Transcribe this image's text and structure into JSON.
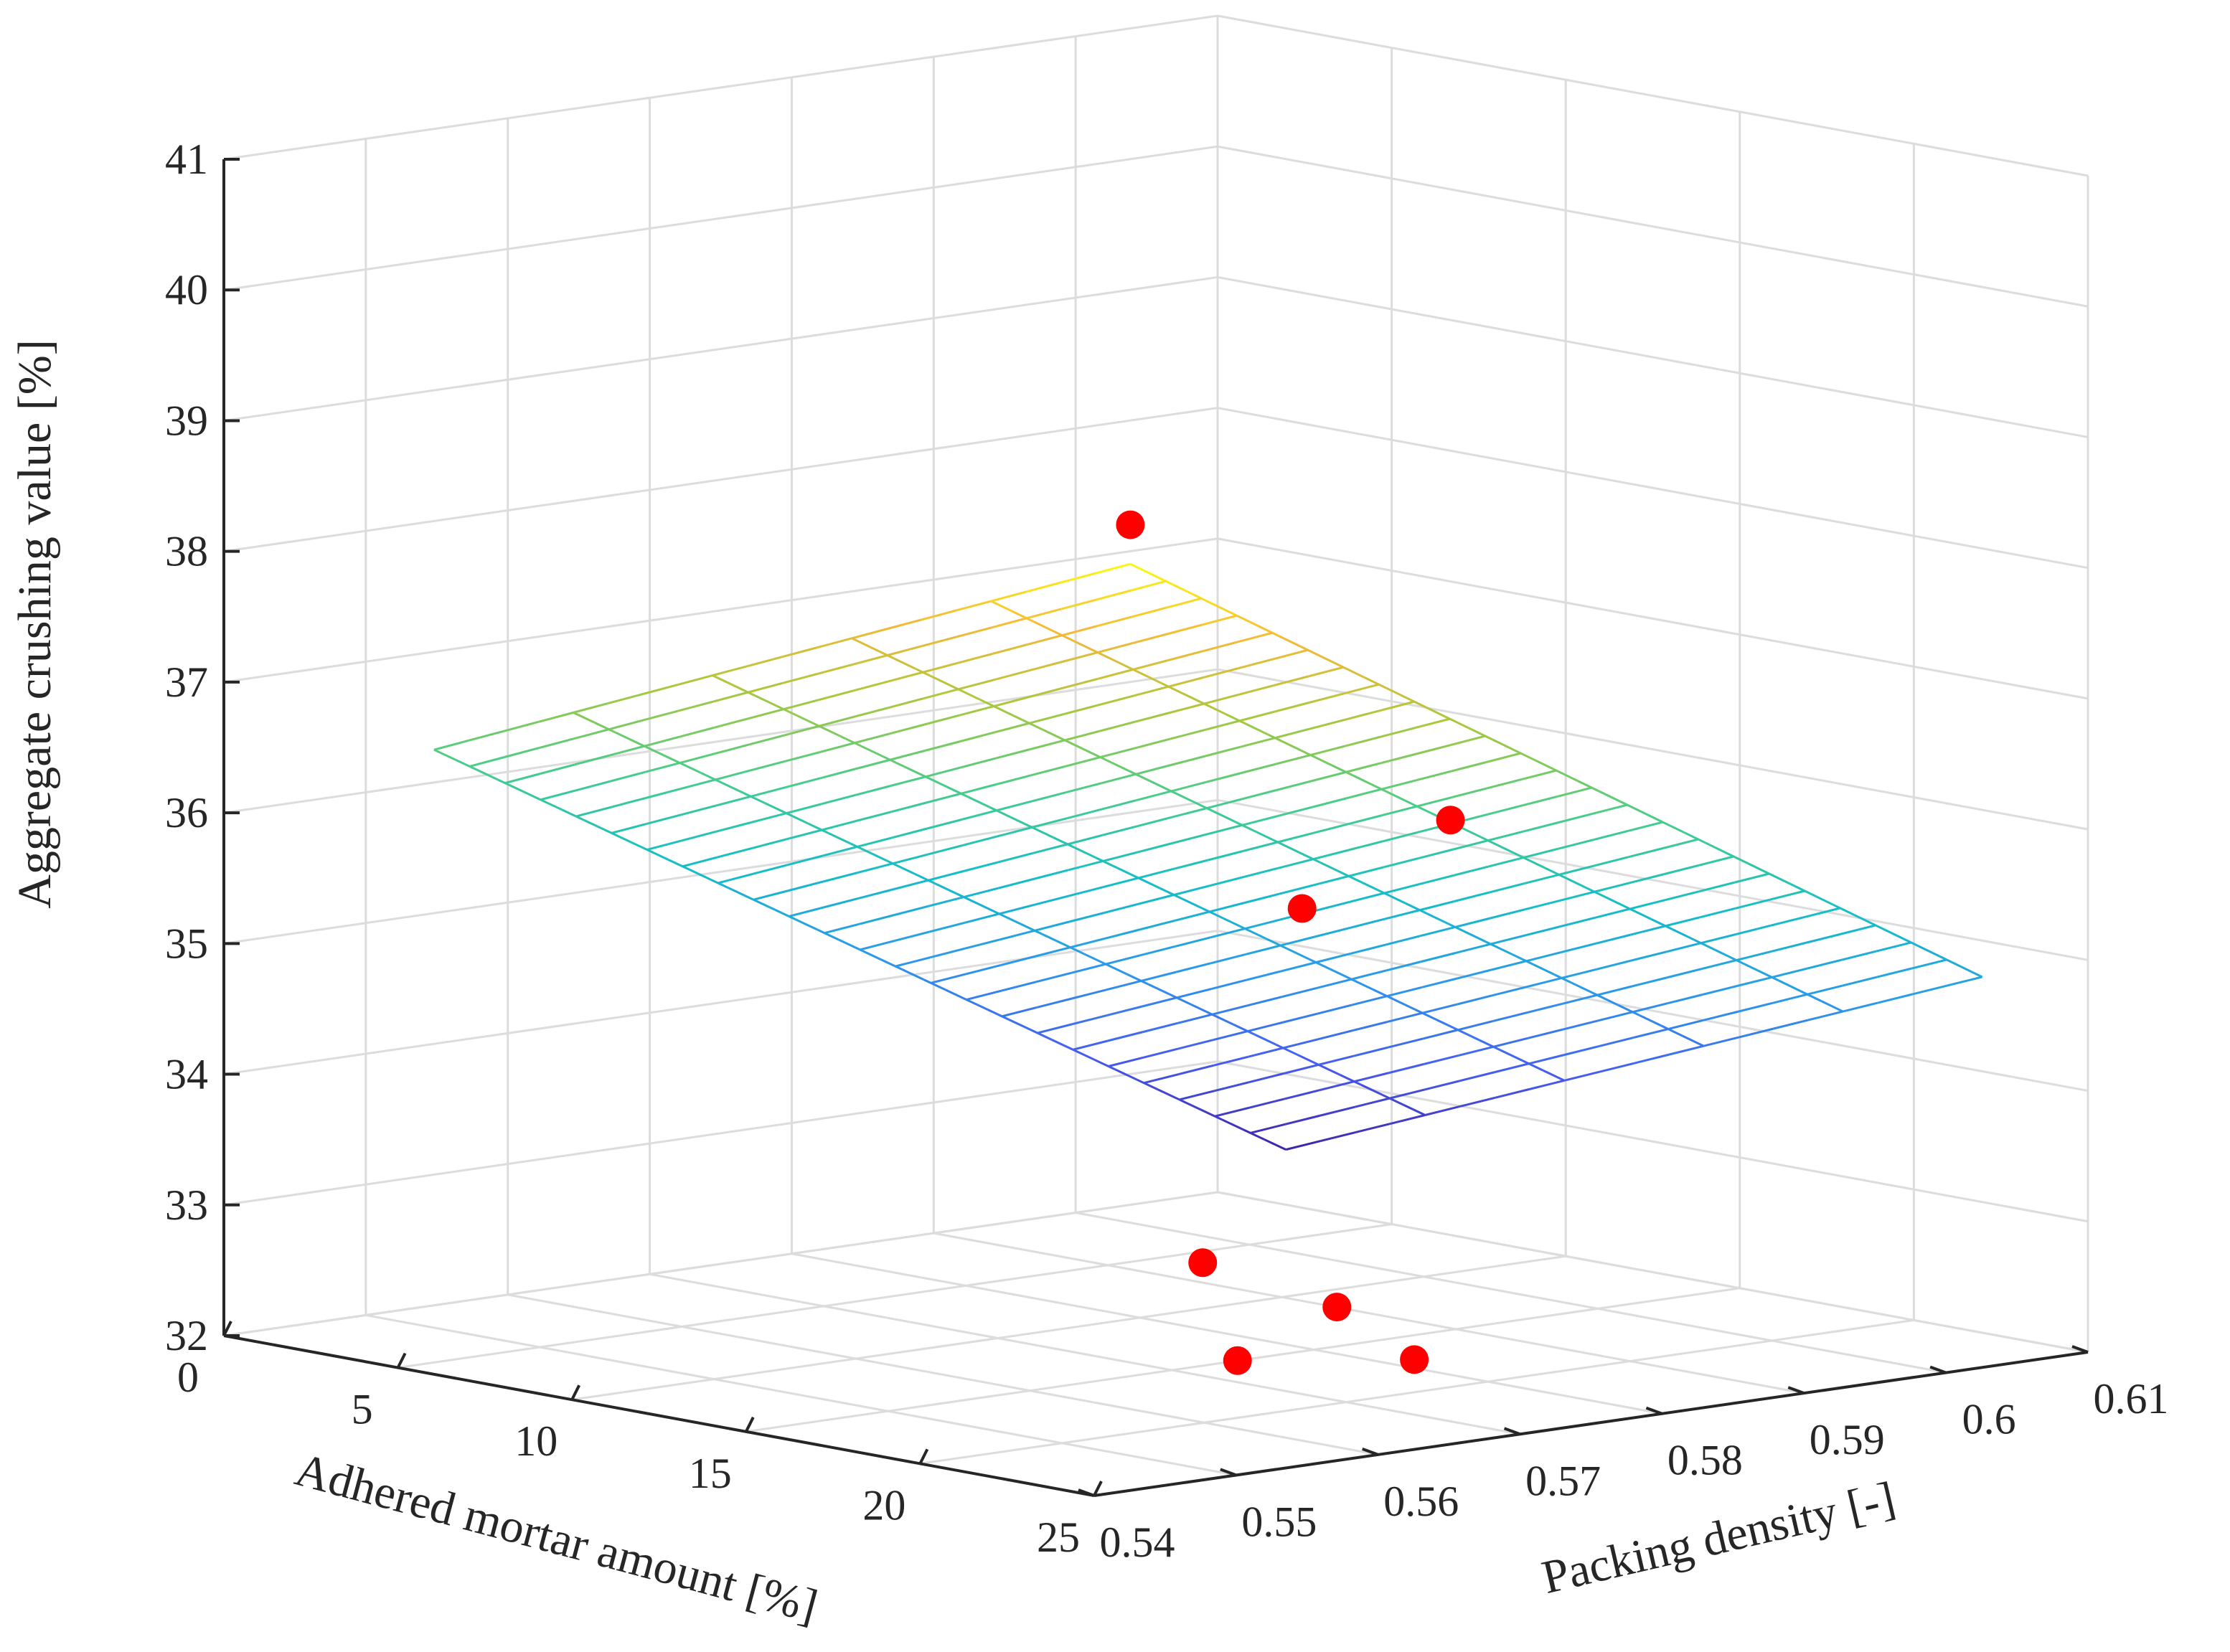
{
  "chart_data": {
    "type": "surface3d",
    "title": "",
    "xlabel": "Adhered mortar amount [%]",
    "ylabel": "Packing density [-]",
    "zlabel": "Aggregate crushing value [%]",
    "xlim": [
      0,
      25
    ],
    "ylim": [
      0.54,
      0.61
    ],
    "zlim": [
      32,
      41
    ],
    "x_ticks": [
      {
        "value": 0,
        "label": "0"
      },
      {
        "value": 5,
        "label": "5"
      },
      {
        "value": 10,
        "label": "10"
      },
      {
        "value": 15,
        "label": "15"
      },
      {
        "value": 20,
        "label": "20"
      },
      {
        "value": 25,
        "label": "25"
      }
    ],
    "y_ticks": [
      {
        "value": 0.54,
        "label": "0.54"
      },
      {
        "value": 0.55,
        "label": "0.55"
      },
      {
        "value": 0.56,
        "label": "0.56"
      },
      {
        "value": 0.57,
        "label": "0.57"
      },
      {
        "value": 0.58,
        "label": "0.58"
      },
      {
        "value": 0.59,
        "label": "0.59"
      },
      {
        "value": 0.6,
        "label": "0.6"
      },
      {
        "value": 0.61,
        "label": "0.61"
      }
    ],
    "z_ticks": [
      {
        "value": 32,
        "label": "32"
      },
      {
        "value": 33,
        "label": "33"
      },
      {
        "value": 34,
        "label": "34"
      },
      {
        "value": 35,
        "label": "35"
      },
      {
        "value": 36,
        "label": "36"
      },
      {
        "value": 37,
        "label": "37"
      },
      {
        "value": 38,
        "label": "38"
      },
      {
        "value": 39,
        "label": "39"
      },
      {
        "value": 40,
        "label": "40"
      },
      {
        "value": 41,
        "label": "41"
      }
    ],
    "surface": {
      "x_range": [
        4,
        24
      ],
      "y_range": [
        0.545,
        0.605
      ],
      "x_steps": 5,
      "y_steps": 24,
      "corners": {
        "x4_y0.545": 36.6,
        "x24_y0.545": 39.0,
        "x4_y0.605": 32.6,
        "x24_y0.605": 34.9
      },
      "colormap": "parula"
    },
    "points": [
      {
        "x": 24,
        "y": 0.545,
        "z": 39.3
      },
      {
        "x": 23,
        "y": 0.57,
        "z": 36.6
      },
      {
        "x": 22,
        "y": 0.562,
        "z": 36.0
      },
      {
        "x": 22,
        "y": 0.555,
        "z": 33.4
      },
      {
        "x": 23,
        "y": 0.562,
        "z": 33.0
      },
      {
        "x": 23,
        "y": 0.555,
        "z": 32.7
      },
      {
        "x": 24,
        "y": 0.565,
        "z": 32.6
      }
    ],
    "point_color": "#ff0000",
    "grid": true
  }
}
